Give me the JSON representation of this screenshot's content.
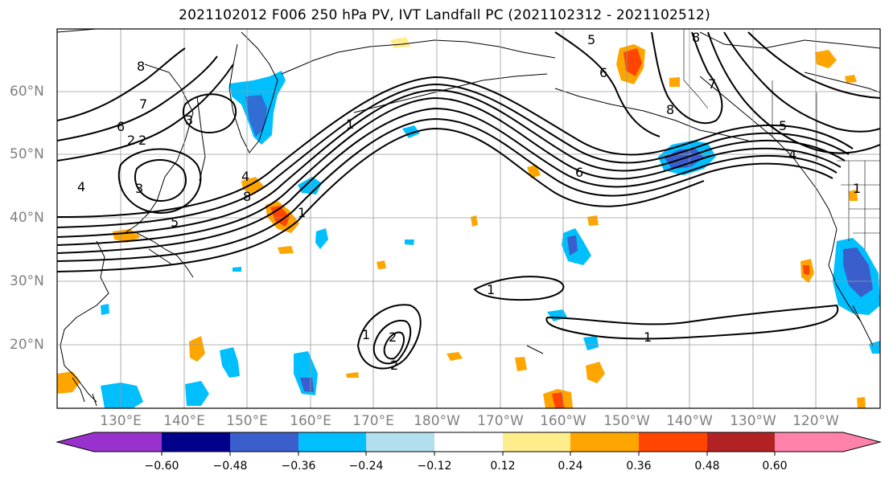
{
  "title": "2021102012 F006 250 hPa PV, IVT Landfall PC (2021102312 - 2021102512)",
  "axes": {
    "lat_labels": [
      "60°N",
      "50°N",
      "40°N",
      "30°N",
      "20°N"
    ],
    "lon_labels": [
      "130°E",
      "140°E",
      "150°E",
      "160°E",
      "170°E",
      "180°W",
      "170°W",
      "160°W",
      "150°W",
      "140°W",
      "130°W",
      "120°W"
    ]
  },
  "colorbar": {
    "colors": [
      "#9932CC",
      "#00008B",
      "#3A5FCD",
      "#00BFFF",
      "#B2DFEE",
      "#FFFFFF",
      "#FFEC8B",
      "#FFA500",
      "#FF4500",
      "#B22222",
      "#FF82AB"
    ],
    "tick_labels": [
      "−0.60",
      "−0.48",
      "−0.36",
      "−0.24",
      "−0.12",
      "0.12",
      "0.24",
      "0.36",
      "0.48",
      "0.60"
    ]
  },
  "contour_labels": [
    "8",
    "7",
    "6",
    "5",
    "4",
    "3",
    "2",
    "1",
    "2",
    "3",
    "4",
    "5",
    "6",
    "8",
    "7",
    "5",
    "6",
    "8",
    "8",
    "1",
    "4",
    "1",
    "1",
    "2",
    "2",
    "1",
    "1"
  ],
  "colors": {
    "coast": "#000000",
    "grid": "#9a9a9a",
    "contour": "#000000"
  }
}
